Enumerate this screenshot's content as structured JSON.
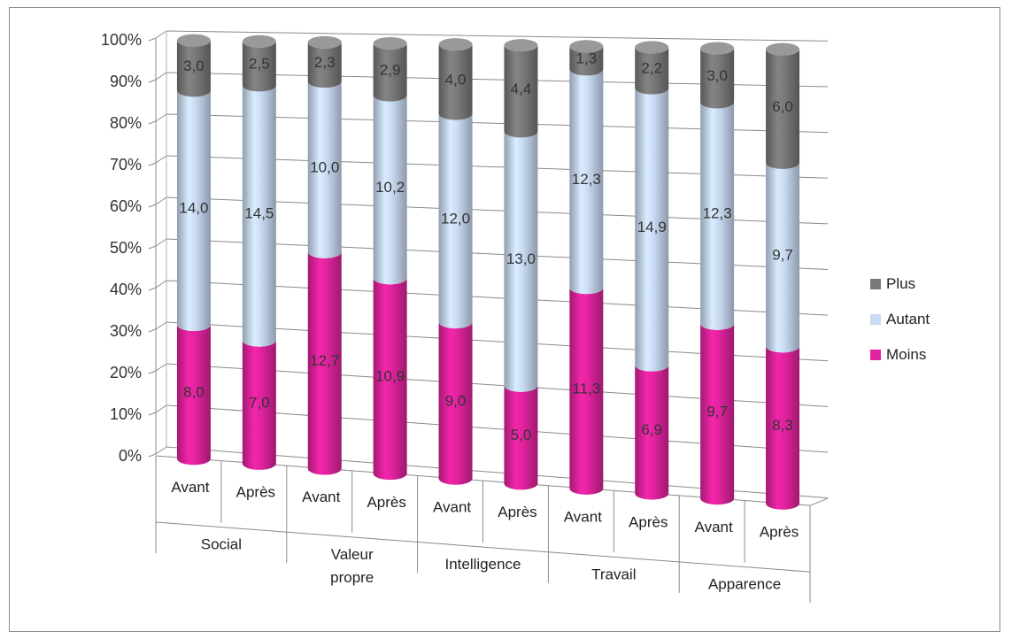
{
  "chart_data": {
    "type": "bar",
    "stacked": "percent",
    "y_ticks": [
      "0%",
      "10%",
      "20%",
      "30%",
      "40%",
      "50%",
      "60%",
      "70%",
      "80%",
      "90%",
      "100%"
    ],
    "ylim": [
      0,
      100
    ],
    "grid": true,
    "legend_position": "right",
    "categories": [
      "Avant",
      "Après",
      "Avant",
      "Après",
      "Avant",
      "Après",
      "Avant",
      "Après",
      "Avant",
      "Après"
    ],
    "groups": [
      {
        "label": "Social",
        "lines": [
          "Social"
        ]
      },
      {
        "label": "Valeur propre",
        "lines": [
          "Valeur",
          "propre"
        ]
      },
      {
        "label": "Intelligence",
        "lines": [
          "Intelligence"
        ]
      },
      {
        "label": "Travail",
        "lines": [
          "Travail"
        ]
      },
      {
        "label": "Apparence",
        "lines": [
          "Apparence"
        ]
      }
    ],
    "series": [
      {
        "name": "Moins",
        "color": "#e2239f",
        "values": [
          8.0,
          7.0,
          12.7,
          10.9,
          9.0,
          5.0,
          11.3,
          6.9,
          9.7,
          8.3
        ],
        "labels": [
          "8,0",
          "7,0",
          "12,7",
          "10,9",
          "9,0",
          "5,0",
          "11,3",
          "6,9",
          "9,7",
          "8,3"
        ]
      },
      {
        "name": "Autant",
        "color": "#c9dbf3",
        "values": [
          14.0,
          14.5,
          10.0,
          10.2,
          12.0,
          13.0,
          12.3,
          14.9,
          12.3,
          9.7
        ],
        "labels": [
          "14,0",
          "14,5",
          "10,0",
          "10,2",
          "12,0",
          "13,0",
          "12,3",
          "14,9",
          "12,3",
          "9,7"
        ]
      },
      {
        "name": "Plus",
        "color": "#7a7a7a",
        "values": [
          3.0,
          2.5,
          2.3,
          2.9,
          4.0,
          4.4,
          1.3,
          2.2,
          3.0,
          6.0
        ],
        "labels": [
          "3,0",
          "2,5",
          "2,3",
          "2,9",
          "4,0",
          "4,4",
          "1,3",
          "2,2",
          "3,0",
          "6,0"
        ]
      }
    ],
    "legend": [
      "Plus",
      "Autant",
      "Moins"
    ]
  }
}
